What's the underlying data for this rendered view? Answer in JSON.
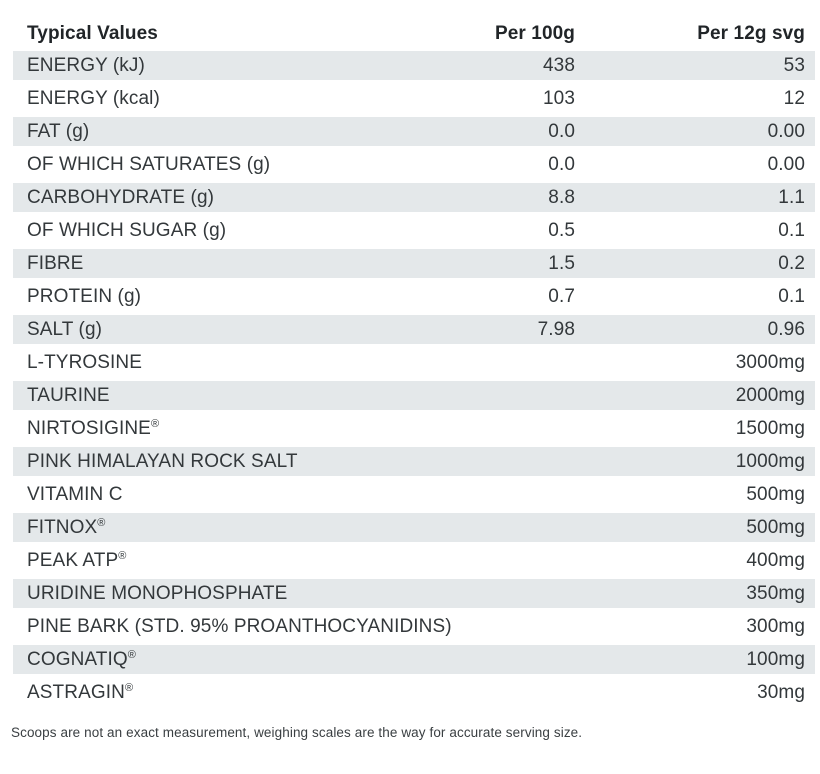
{
  "table": {
    "headers": {
      "label": "Typical Values",
      "per_100g": "Per 100g",
      "per_12g": "Per 12g svg"
    },
    "rows": [
      {
        "label": "ENERGY (kJ)",
        "mark": "",
        "per_100g": "438",
        "per_12g": "53"
      },
      {
        "label": "ENERGY (kcal)",
        "mark": "",
        "per_100g": "103",
        "per_12g": "12"
      },
      {
        "label": "FAT (g)",
        "mark": "",
        "per_100g": "0.0",
        "per_12g": "0.00"
      },
      {
        "label": "OF WHICH SATURATES (g)",
        "mark": "",
        "per_100g": "0.0",
        "per_12g": "0.00"
      },
      {
        "label": "CARBOHYDRATE (g)",
        "mark": "",
        "per_100g": "8.8",
        "per_12g": "1.1"
      },
      {
        "label": "OF WHICH SUGAR (g)",
        "mark": "",
        "per_100g": "0.5",
        "per_12g": "0.1"
      },
      {
        "label": "FIBRE",
        "mark": "",
        "per_100g": "1.5",
        "per_12g": "0.2"
      },
      {
        "label": "PROTEIN (g)",
        "mark": "",
        "per_100g": "0.7",
        "per_12g": "0.1"
      },
      {
        "label": "SALT (g)",
        "mark": "",
        "per_100g": "7.98",
        "per_12g": "0.96"
      },
      {
        "label": "L-TYROSINE",
        "mark": "",
        "per_100g": "",
        "per_12g": "3000mg"
      },
      {
        "label": "TAURINE",
        "mark": "",
        "per_100g": "",
        "per_12g": "2000mg"
      },
      {
        "label": "NIRTOSIGINE",
        "mark": "®",
        "per_100g": "",
        "per_12g": "1500mg"
      },
      {
        "label": "PINK HIMALAYAN ROCK SALT",
        "mark": "",
        "per_100g": "",
        "per_12g": "1000mg"
      },
      {
        "label": "VITAMIN C",
        "mark": "",
        "per_100g": "",
        "per_12g": "500mg"
      },
      {
        "label": "FITNOX",
        "mark": "®",
        "per_100g": "",
        "per_12g": "500mg"
      },
      {
        "label": "PEAK ATP",
        "mark": "®",
        "per_100g": "",
        "per_12g": "400mg"
      },
      {
        "label": "URIDINE MONOPHOSPHATE",
        "mark": "",
        "per_100g": "",
        "per_12g": "350mg"
      },
      {
        "label": "PINE BARK (STD. 95% PROANTHOCYANIDINS)",
        "mark": "",
        "per_100g": "",
        "per_12g": "300mg"
      },
      {
        "label": "COGNATIQ",
        "mark": "®",
        "per_100g": "",
        "per_12g": "100mg"
      },
      {
        "label": "ASTRAGIN",
        "mark": "®",
        "per_100g": "",
        "per_12g": "30mg"
      }
    ],
    "footnote": "Scoops are not an exact measurement, weighing scales are the way for accurate serving size.",
    "colors": {
      "stripe": "#e4e8ea",
      "text": "#33383b",
      "header_text": "#212528"
    }
  }
}
